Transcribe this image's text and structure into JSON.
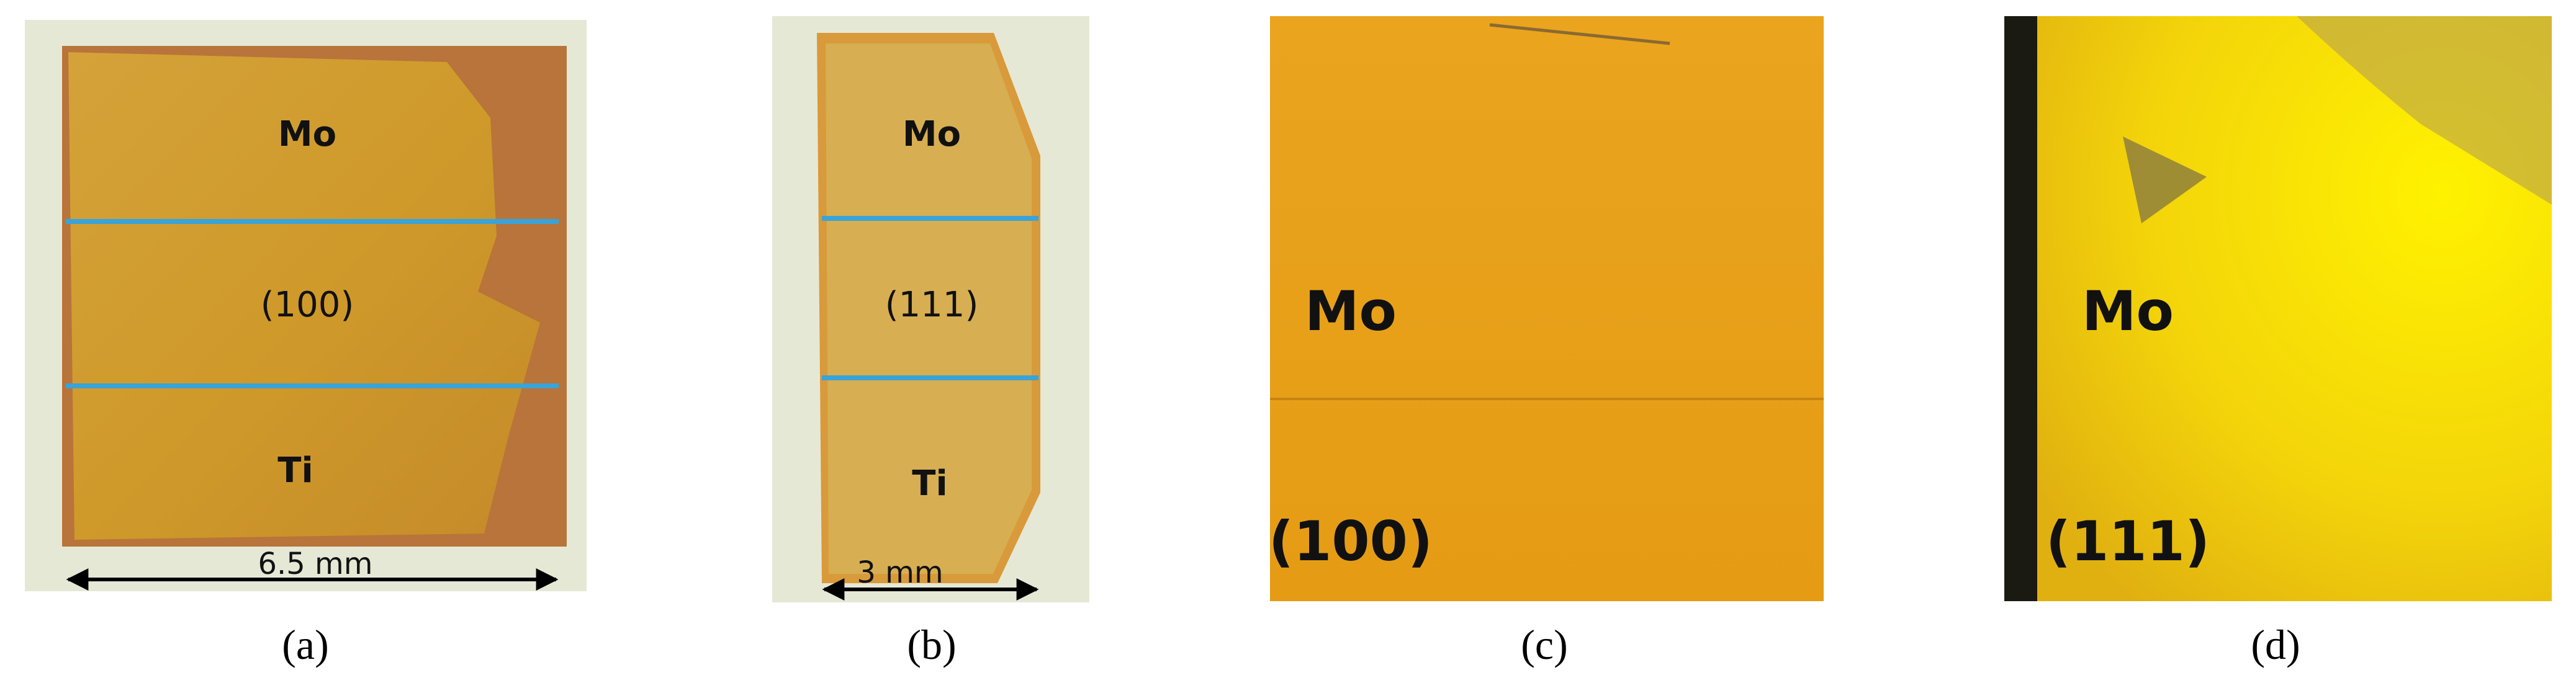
{
  "panels": [
    {
      "caption": "(a)",
      "labels": [
        "Mo",
        "(100)",
        "Ti"
      ],
      "scale": "6.5 mm"
    },
    {
      "caption": "(b)",
      "labels": [
        "Mo",
        "(111)",
        "Ti"
      ],
      "scale": "3 mm"
    },
    {
      "caption": "(c)",
      "labels": [
        "Mo",
        "(100)"
      ]
    },
    {
      "caption": "(d)",
      "labels": [
        "Mo",
        "(111)"
      ]
    }
  ]
}
